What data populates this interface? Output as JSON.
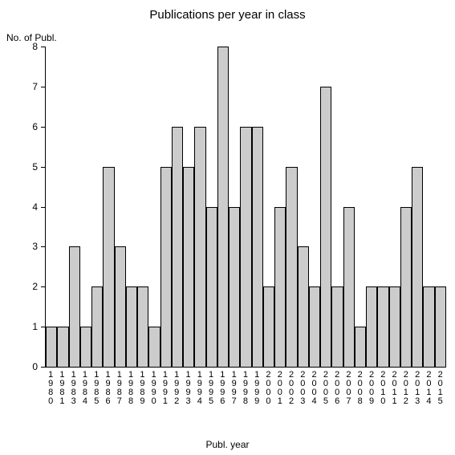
{
  "chart": {
    "type": "bar",
    "title": "Publications per year in class",
    "title_fontsize": 15,
    "ylabel": "No. of Publ.",
    "xlabel": "Publ. year",
    "label_fontsize": 12,
    "background_color": "#ffffff",
    "bar_fill": "#cccccc",
    "bar_border": "#000000",
    "axis_color": "#000000",
    "ylim": [
      0,
      8
    ],
    "yticks": [
      0,
      1,
      2,
      3,
      4,
      5,
      6,
      7,
      8
    ],
    "categories": [
      "1980",
      "1981",
      "1983",
      "1984",
      "1985",
      "1986",
      "1987",
      "1988",
      "1989",
      "1990",
      "1991",
      "1992",
      "1993",
      "1994",
      "1995",
      "1996",
      "1997",
      "1998",
      "1999",
      "2000",
      "2001",
      "2002",
      "2003",
      "2004",
      "2005",
      "2006",
      "2007",
      "2008",
      "2009",
      "2010",
      "2011",
      "2012",
      "2013",
      "2014",
      "2015"
    ],
    "values": [
      1,
      1,
      3,
      1,
      2,
      5,
      3,
      2,
      2,
      1,
      5,
      6,
      5,
      6,
      4,
      8,
      4,
      6,
      6,
      2,
      4,
      5,
      3,
      2,
      7,
      2,
      4,
      1,
      2,
      2,
      2,
      4,
      5,
      2,
      2
    ]
  }
}
